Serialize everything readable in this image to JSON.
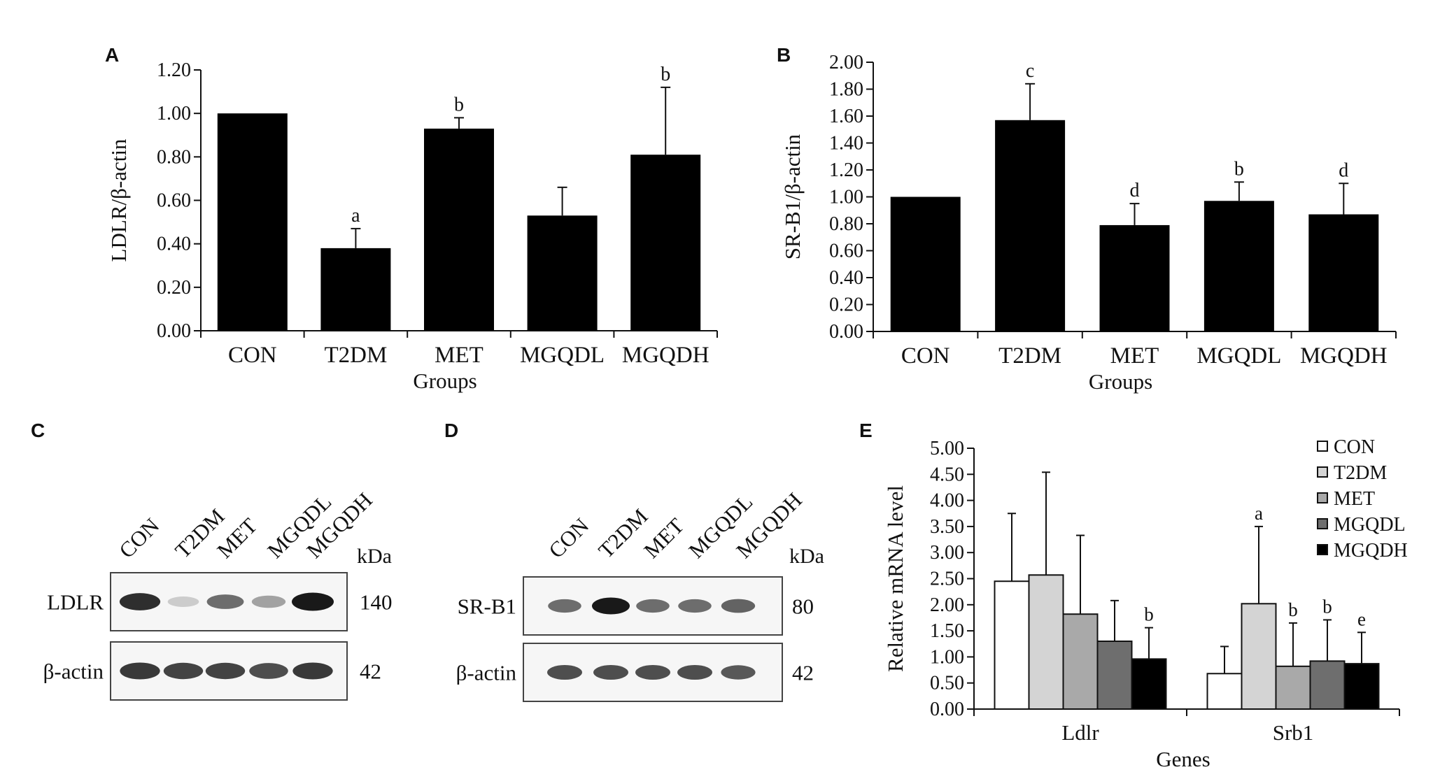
{
  "chart_data": [
    {
      "panel": "A",
      "type": "bar",
      "categories": [
        "CON",
        "T2DM",
        "MET",
        "MGQDL",
        "MGQDH"
      ],
      "values": [
        1.0,
        0.38,
        0.93,
        0.53,
        0.81
      ],
      "errors": [
        0.0,
        0.09,
        0.05,
        0.13,
        0.31
      ],
      "significance": [
        "",
        "a",
        "b",
        "",
        "b"
      ],
      "ylabel": "LDLR/β-actin",
      "xlabel": "Groups",
      "ylim": [
        0,
        1.2
      ],
      "yticks": [
        "0.00",
        "0.20",
        "0.40",
        "0.60",
        "0.80",
        "1.00",
        "1.20"
      ]
    },
    {
      "panel": "B",
      "type": "bar",
      "categories": [
        "CON",
        "T2DM",
        "MET",
        "MGQDL",
        "MGQDH"
      ],
      "values": [
        1.0,
        1.57,
        0.79,
        0.97,
        0.87
      ],
      "errors": [
        0.0,
        0.27,
        0.16,
        0.14,
        0.23
      ],
      "significance": [
        "",
        "c",
        "d",
        "b",
        "d"
      ],
      "ylabel": "SR-B1/β-actin",
      "xlabel": "Groups",
      "ylim": [
        0,
        2.0
      ],
      "yticks": [
        "0.00",
        "0.20",
        "0.40",
        "0.60",
        "0.80",
        "1.00",
        "1.20",
        "1.40",
        "1.60",
        "1.80",
        "2.00"
      ]
    },
    {
      "panel": "E",
      "type": "bar",
      "categories": [
        "Ldlr",
        "Srb1"
      ],
      "series": [
        {
          "name": "CON",
          "color": "#ffffff",
          "values": [
            2.45,
            0.68
          ],
          "errors": [
            1.3,
            0.52
          ],
          "significance": [
            "",
            ""
          ]
        },
        {
          "name": "T2DM",
          "color": "#d4d4d4",
          "values": [
            2.57,
            2.02
          ],
          "errors": [
            1.97,
            1.48
          ],
          "significance": [
            "",
            "a"
          ]
        },
        {
          "name": "MET",
          "color": "#a9a9a9",
          "values": [
            1.82,
            0.82
          ],
          "errors": [
            1.51,
            0.83
          ],
          "significance": [
            "",
            "b"
          ]
        },
        {
          "name": "MGQDL",
          "color": "#6e6e6e",
          "values": [
            1.3,
            0.92
          ],
          "errors": [
            0.78,
            0.79
          ],
          "significance": [
            "",
            "b"
          ]
        },
        {
          "name": "MGQDH",
          "color": "#000000",
          "values": [
            0.96,
            0.87
          ],
          "errors": [
            0.6,
            0.6
          ],
          "significance": [
            "b",
            "e"
          ]
        }
      ],
      "ylabel": "Relative mRNA level",
      "xlabel": "Genes",
      "ylim": [
        0,
        5.0
      ],
      "yticks": [
        "0.00",
        "0.50",
        "1.00",
        "1.50",
        "2.00",
        "2.50",
        "3.00",
        "3.50",
        "4.00",
        "4.50",
        "5.00"
      ],
      "legend_position": "top-right"
    }
  ],
  "blots": {
    "C": {
      "panel": "C",
      "lanes": [
        "CON",
        "T2DM",
        "MET",
        "MGQDL",
        "MGQDH"
      ],
      "kda_label": "kDa",
      "rows": [
        {
          "name": "LDLR",
          "kda": "140",
          "intensities": [
            0.9,
            0.15,
            0.6,
            0.35,
            1.0
          ]
        },
        {
          "name": "β-actin",
          "kda": "42",
          "intensities": [
            0.85,
            0.8,
            0.8,
            0.75,
            0.85
          ]
        }
      ]
    },
    "D": {
      "panel": "D",
      "lanes": [
        "CON",
        "T2DM",
        "MET",
        "MGQDL",
        "MGQDH"
      ],
      "kda_label": "kDa",
      "rows": [
        {
          "name": "SR-B1",
          "kda": "80",
          "intensities": [
            0.6,
            1.0,
            0.6,
            0.6,
            0.65
          ]
        },
        {
          "name": "β-actin",
          "kda": "42",
          "intensities": [
            0.75,
            0.75,
            0.75,
            0.75,
            0.7
          ]
        }
      ]
    }
  }
}
